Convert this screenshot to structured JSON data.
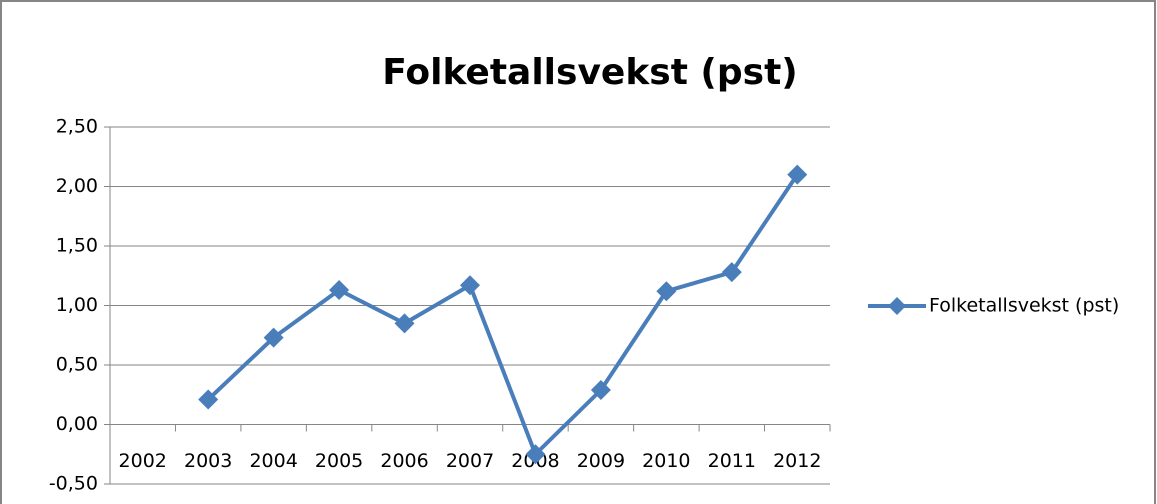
{
  "chart_data": {
    "type": "line",
    "title": "Folketallsvekst (pst)",
    "categories": [
      "2002",
      "2003",
      "2004",
      "2005",
      "2006",
      "2007",
      "2008",
      "2009",
      "2010",
      "2011",
      "2012"
    ],
    "series": [
      {
        "name": "Folketallsvekst (pst)",
        "color": "#4a7ebb",
        "values": [
          null,
          0.21,
          0.73,
          1.13,
          0.85,
          1.17,
          -0.25,
          0.29,
          1.12,
          1.28,
          2.1
        ]
      }
    ],
    "ylim": [
      -0.5,
      2.5
    ],
    "yticks": [
      {
        "value": -0.5,
        "label": "-0,50"
      },
      {
        "value": 0,
        "label": "0,00"
      },
      {
        "value": 0.5,
        "label": "0,50"
      },
      {
        "value": 1,
        "label": "1,00"
      },
      {
        "value": 1.5,
        "label": "1,50"
      },
      {
        "value": 2,
        "label": "2,00"
      },
      {
        "value": 2.5,
        "label": "2,50"
      }
    ],
    "grid": true,
    "legend": "right"
  }
}
